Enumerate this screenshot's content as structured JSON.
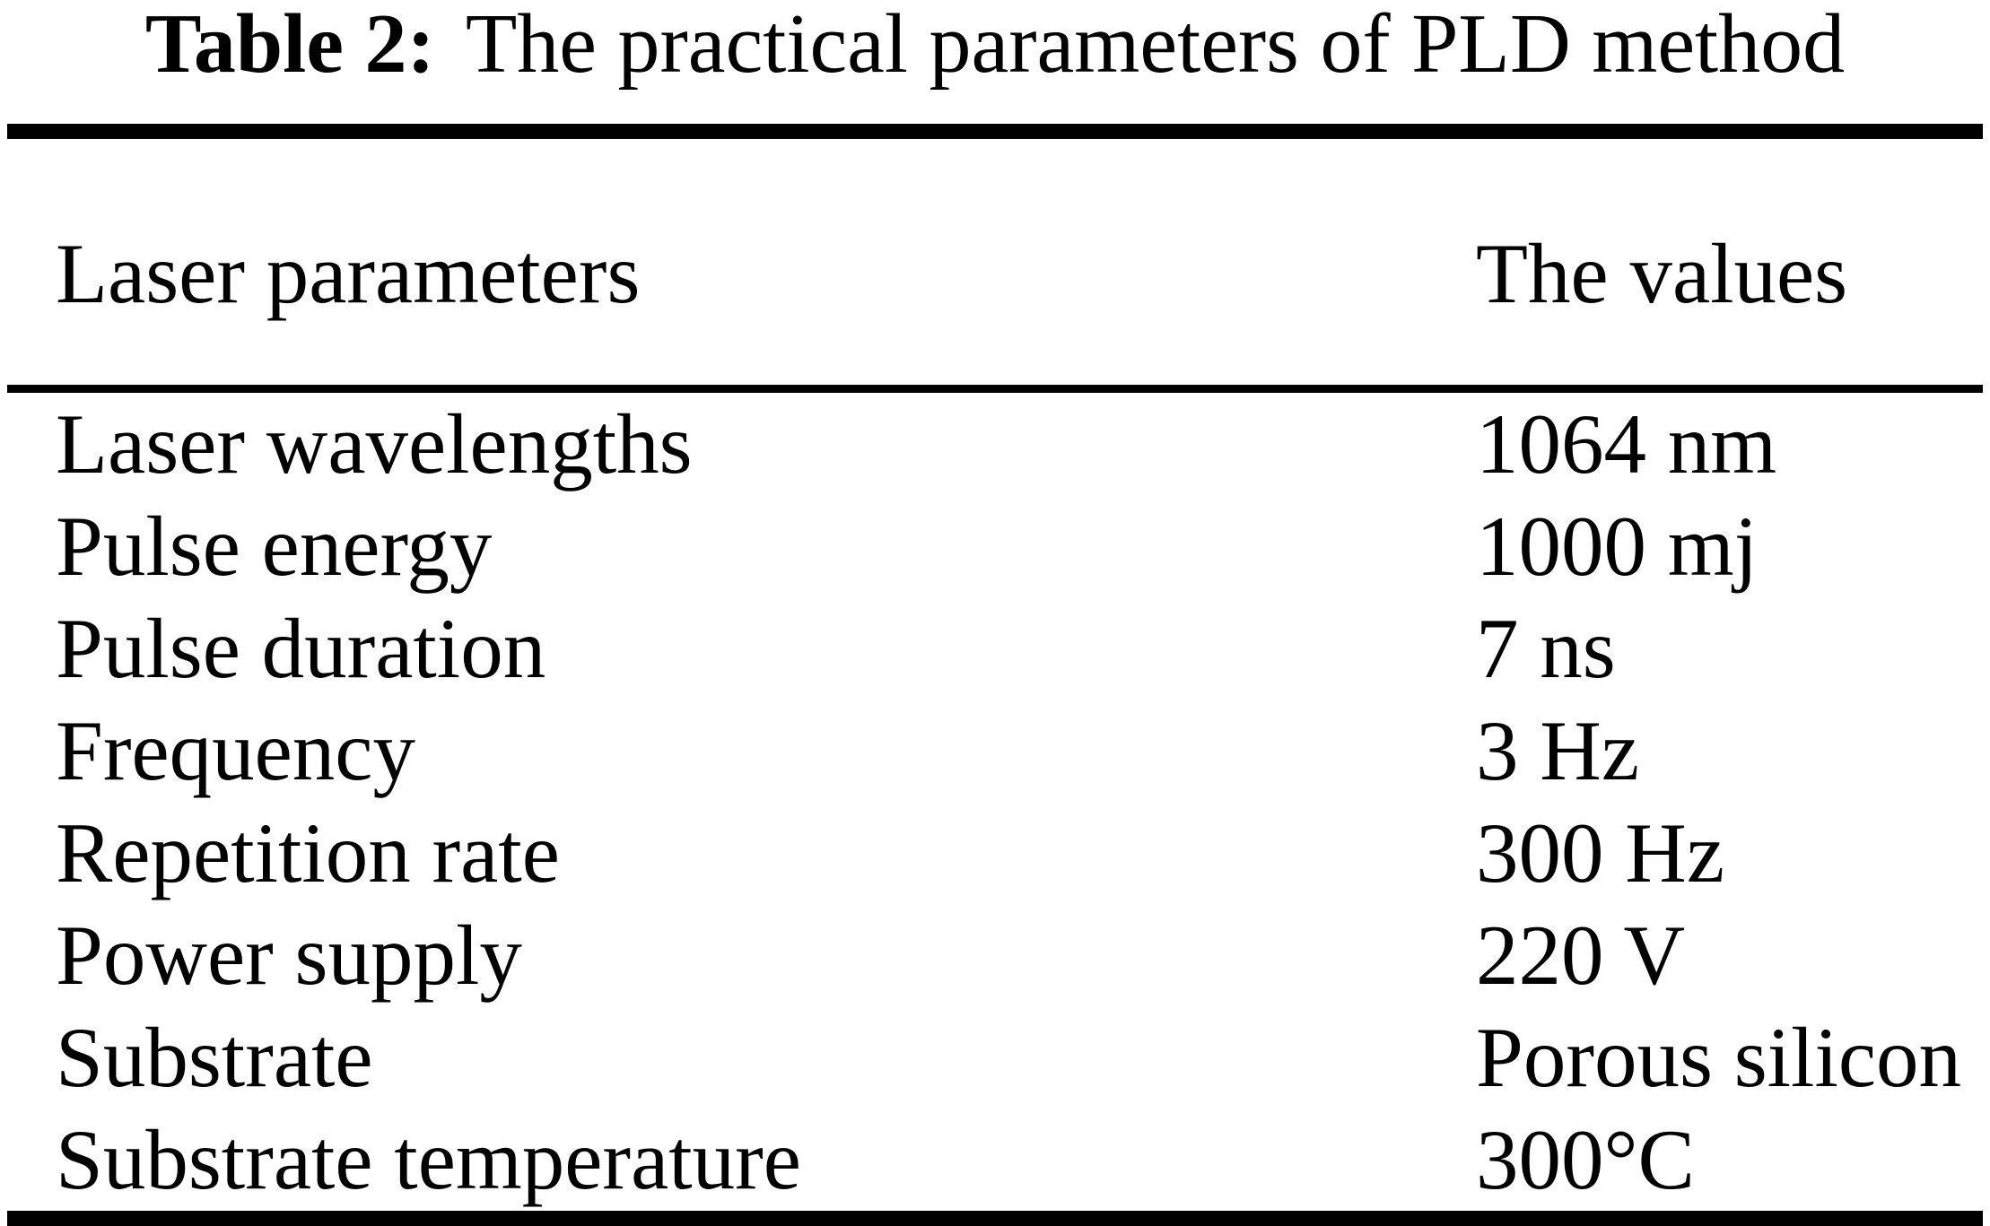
{
  "table": {
    "title": {
      "label": "Table 2:",
      "text": "The practical parameters of PLD method"
    },
    "columns": [
      "Laser parameters",
      "The values"
    ],
    "rows": [
      {
        "parameter": "Laser wavelengths",
        "value": "1064 nm"
      },
      {
        "parameter": "Pulse energy",
        "value": "1000 mj"
      },
      {
        "parameter": "Pulse duration",
        "value": "7 ns"
      },
      {
        "parameter": "Frequency",
        "value": "3 Hz"
      },
      {
        "parameter": "Repetition rate",
        "value": "300 Hz"
      },
      {
        "parameter": "Power supply",
        "value": "220 V"
      },
      {
        "parameter": "Substrate",
        "value": "Porous silicon"
      },
      {
        "parameter": "Substrate temperature",
        "value": "300°C"
      }
    ]
  },
  "colors": {
    "background": "#ffffff",
    "text": "#000000",
    "rule": "#000000"
  }
}
